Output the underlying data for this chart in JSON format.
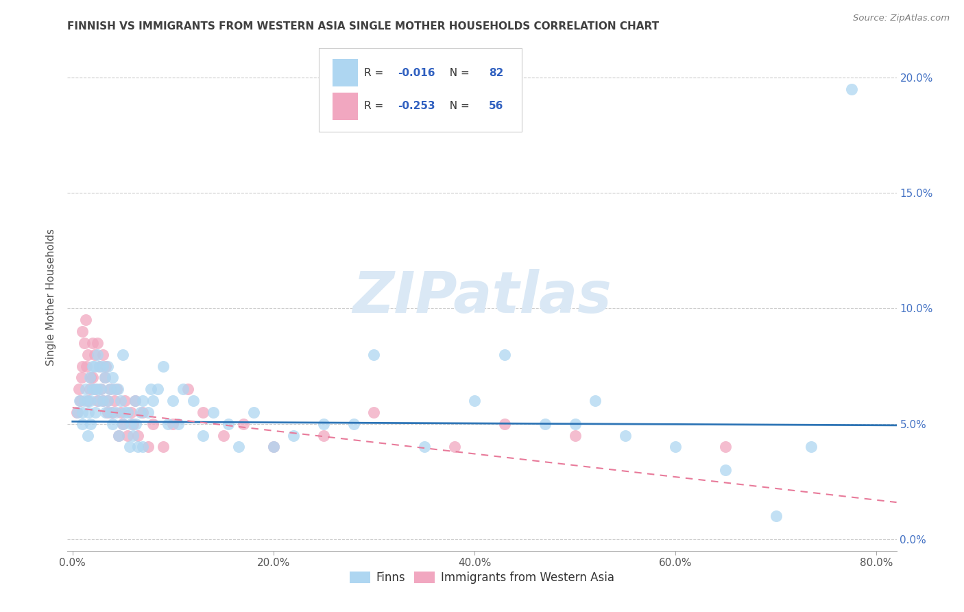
{
  "title": "FINNISH VS IMMIGRANTS FROM WESTERN ASIA SINGLE MOTHER HOUSEHOLDS CORRELATION CHART",
  "source": "Source: ZipAtlas.com",
  "ylabel": "Single Mother Households",
  "xlabel_ticks": [
    "0.0%",
    "20.0%",
    "40.0%",
    "60.0%",
    "80.0%"
  ],
  "xlabel_vals": [
    0.0,
    0.2,
    0.4,
    0.6,
    0.8
  ],
  "ylabel_ticks": [
    "0.0%",
    "5.0%",
    "10.0%",
    "15.0%",
    "20.0%"
  ],
  "ylabel_vals": [
    0.0,
    0.05,
    0.1,
    0.15,
    0.2
  ],
  "xlim": [
    -0.005,
    0.82
  ],
  "ylim": [
    -0.005,
    0.215
  ],
  "legend_labels": [
    "Finns",
    "Immigrants from Western Asia"
  ],
  "r_finn": -0.016,
  "n_finn": 82,
  "r_imm": -0.253,
  "n_imm": 56,
  "blue_color": "#AED6F1",
  "pink_color": "#F1A7C0",
  "blue_line_color": "#2E75B6",
  "pink_line_color": "#E87A9A",
  "watermark_color": "#DAE8F5",
  "title_color": "#404040",
  "source_color": "#808080",
  "finn_line_slope": -0.002,
  "finn_line_intercept": 0.051,
  "imm_line_slope": -0.05,
  "imm_line_intercept": 0.057,
  "finns_x": [
    0.005,
    0.007,
    0.01,
    0.01,
    0.012,
    0.013,
    0.015,
    0.015,
    0.016,
    0.017,
    0.018,
    0.018,
    0.02,
    0.02,
    0.022,
    0.022,
    0.023,
    0.025,
    0.025,
    0.026,
    0.027,
    0.028,
    0.03,
    0.03,
    0.032,
    0.033,
    0.035,
    0.035,
    0.037,
    0.038,
    0.04,
    0.04,
    0.042,
    0.043,
    0.045,
    0.046,
    0.048,
    0.05,
    0.05,
    0.052,
    0.055,
    0.057,
    0.058,
    0.06,
    0.062,
    0.063,
    0.065,
    0.068,
    0.07,
    0.07,
    0.075,
    0.078,
    0.08,
    0.085,
    0.09,
    0.095,
    0.1,
    0.105,
    0.11,
    0.12,
    0.13,
    0.14,
    0.155,
    0.165,
    0.18,
    0.2,
    0.22,
    0.25,
    0.28,
    0.3,
    0.35,
    0.4,
    0.43,
    0.47,
    0.5,
    0.52,
    0.55,
    0.6,
    0.65,
    0.7,
    0.735,
    0.775
  ],
  "finns_y": [
    0.055,
    0.06,
    0.055,
    0.05,
    0.06,
    0.065,
    0.06,
    0.045,
    0.055,
    0.07,
    0.06,
    0.05,
    0.075,
    0.065,
    0.075,
    0.065,
    0.055,
    0.08,
    0.065,
    0.06,
    0.075,
    0.065,
    0.075,
    0.06,
    0.07,
    0.055,
    0.075,
    0.06,
    0.065,
    0.055,
    0.07,
    0.05,
    0.065,
    0.055,
    0.065,
    0.045,
    0.06,
    0.08,
    0.05,
    0.055,
    0.055,
    0.04,
    0.05,
    0.045,
    0.06,
    0.05,
    0.04,
    0.055,
    0.06,
    0.04,
    0.055,
    0.065,
    0.06,
    0.065,
    0.075,
    0.05,
    0.06,
    0.05,
    0.065,
    0.06,
    0.045,
    0.055,
    0.05,
    0.04,
    0.055,
    0.04,
    0.045,
    0.05,
    0.05,
    0.08,
    0.04,
    0.06,
    0.08,
    0.05,
    0.05,
    0.06,
    0.045,
    0.04,
    0.03,
    0.01,
    0.04,
    0.195
  ],
  "imm_x": [
    0.004,
    0.006,
    0.008,
    0.009,
    0.01,
    0.01,
    0.012,
    0.013,
    0.014,
    0.015,
    0.015,
    0.017,
    0.018,
    0.02,
    0.02,
    0.022,
    0.023,
    0.025,
    0.025,
    0.027,
    0.028,
    0.03,
    0.03,
    0.032,
    0.033,
    0.035,
    0.035,
    0.038,
    0.04,
    0.042,
    0.044,
    0.046,
    0.048,
    0.05,
    0.052,
    0.055,
    0.058,
    0.06,
    0.062,
    0.065,
    0.07,
    0.075,
    0.08,
    0.09,
    0.1,
    0.115,
    0.13,
    0.15,
    0.17,
    0.2,
    0.25,
    0.3,
    0.38,
    0.43,
    0.5,
    0.65
  ],
  "imm_y": [
    0.055,
    0.065,
    0.06,
    0.07,
    0.09,
    0.075,
    0.085,
    0.095,
    0.075,
    0.08,
    0.06,
    0.065,
    0.07,
    0.085,
    0.07,
    0.08,
    0.065,
    0.085,
    0.06,
    0.075,
    0.065,
    0.08,
    0.06,
    0.07,
    0.075,
    0.06,
    0.055,
    0.065,
    0.055,
    0.06,
    0.065,
    0.045,
    0.055,
    0.05,
    0.06,
    0.045,
    0.055,
    0.05,
    0.06,
    0.045,
    0.055,
    0.04,
    0.05,
    0.04,
    0.05,
    0.065,
    0.055,
    0.045,
    0.05,
    0.04,
    0.045,
    0.055,
    0.04,
    0.05,
    0.045,
    0.04
  ]
}
